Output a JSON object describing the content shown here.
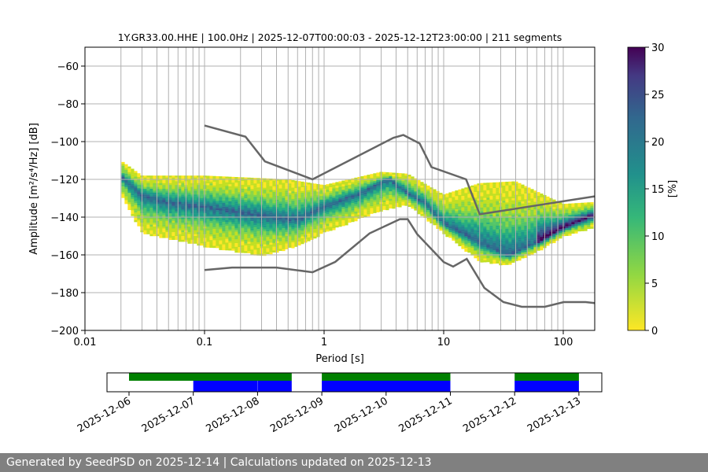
{
  "chart_data": {
    "type": "heatmap",
    "title": "1Y.GR33.00.HHE | 100.0Hz | 2025-12-07T00:00:03 - 2025-12-12T23:00:00 | 211 segments",
    "xlabel": "Period [s]",
    "ylabel": "Amplitude [m²/s⁴/Hz] [dB]",
    "xscale": "log",
    "xlim": [
      0.01,
      183
    ],
    "ylim": [
      -200,
      -50
    ],
    "xticks": [
      {
        "v": 0.01,
        "label": "0.01"
      },
      {
        "v": 0.1,
        "label": "0.1"
      },
      {
        "v": 1,
        "label": "1"
      },
      {
        "v": 10,
        "label": "10"
      },
      {
        "v": 100,
        "label": "100"
      }
    ],
    "yticks": [
      {
        "v": -60,
        "label": "−60"
      },
      {
        "v": -80,
        "label": "−80"
      },
      {
        "v": -100,
        "label": "−100"
      },
      {
        "v": -120,
        "label": "−120"
      },
      {
        "v": -140,
        "label": "−140"
      },
      {
        "v": -160,
        "label": "−160"
      },
      {
        "v": -180,
        "label": "−180"
      },
      {
        "v": -200,
        "label": "−200"
      }
    ],
    "grid": true,
    "colorbar": {
      "label": "[%]",
      "range": [
        0,
        30
      ],
      "ticks": [
        "0",
        "5",
        "10",
        "15",
        "20",
        "25",
        "30"
      ],
      "colormap": "viridis_r"
    },
    "pdf_mode": [
      [
        0.02,
        -118
      ],
      [
        0.03,
        -128
      ],
      [
        0.05,
        -132
      ],
      [
        0.1,
        -134
      ],
      [
        0.2,
        -137
      ],
      [
        0.4,
        -140
      ],
      [
        0.6,
        -141
      ],
      [
        1,
        -134
      ],
      [
        2,
        -127
      ],
      [
        3.5,
        -119
      ],
      [
        5,
        -127
      ],
      [
        7,
        -132
      ],
      [
        10,
        -143
      ],
      [
        20,
        -153
      ],
      [
        35,
        -160
      ],
      [
        60,
        -153
      ],
      [
        100,
        -145
      ],
      [
        183,
        -138
      ]
    ],
    "pdf_upper": [
      [
        0.02,
        -110
      ],
      [
        0.03,
        -118
      ],
      [
        0.1,
        -118
      ],
      [
        0.5,
        -120
      ],
      [
        1,
        -123
      ],
      [
        3,
        -116
      ],
      [
        5,
        -117
      ],
      [
        10,
        -128
      ],
      [
        20,
        -122
      ],
      [
        40,
        -121
      ],
      [
        100,
        -133
      ],
      [
        183,
        -132
      ]
    ],
    "pdf_lower": [
      [
        0.02,
        -127
      ],
      [
        0.03,
        -148
      ],
      [
        0.1,
        -155
      ],
      [
        0.3,
        -160
      ],
      [
        0.6,
        -155
      ],
      [
        1,
        -148
      ],
      [
        3,
        -136
      ],
      [
        5,
        -133
      ],
      [
        10,
        -148
      ],
      [
        20,
        -163
      ],
      [
        35,
        -165
      ],
      [
        60,
        -158
      ],
      [
        100,
        -150
      ],
      [
        183,
        -145
      ]
    ],
    "nhnm": [
      [
        0.1,
        -91.5
      ],
      [
        0.22,
        -97.4
      ],
      [
        0.32,
        -110.5
      ],
      [
        0.8,
        -120
      ],
      [
        3.8,
        -98
      ],
      [
        4.6,
        -96.5
      ],
      [
        6.3,
        -101
      ],
      [
        7.9,
        -113.5
      ],
      [
        15.4,
        -120
      ],
      [
        20,
        -138.5
      ],
      [
        183,
        -129
      ]
    ],
    "nlnm": [
      [
        0.1,
        -168
      ],
      [
        0.17,
        -166.7
      ],
      [
        0.4,
        -166.7
      ],
      [
        0.8,
        -169.2
      ],
      [
        1.24,
        -163.7
      ],
      [
        2.4,
        -148.6
      ],
      [
        4.3,
        -141.1
      ],
      [
        5,
        -141.1
      ],
      [
        6,
        -149
      ],
      [
        10,
        -163.8
      ],
      [
        12,
        -166.2
      ],
      [
        15.6,
        -162.1
      ],
      [
        21.9,
        -177.5
      ],
      [
        31.6,
        -185
      ],
      [
        45,
        -187.5
      ],
      [
        70,
        -187.5
      ],
      [
        101,
        -185
      ],
      [
        154,
        -185
      ],
      [
        183,
        -185.5
      ]
    ],
    "timeline": {
      "ticks": [
        "2025-12-06",
        "2025-12-07",
        "2025-12-08",
        "2025-12-09",
        "2025-12-10",
        "2025-12-11",
        "2025-12-12",
        "2025-12-13"
      ],
      "green_color": "#008000",
      "blue_color": "#0000ff",
      "green_spans": [
        [
          "2025-12-06T00:00",
          "2025-12-08T12:45"
        ],
        [
          "2025-12-09T00:00",
          "2025-12-11T00:00"
        ],
        [
          "2025-12-12T00:00",
          "2025-12-13T00:00"
        ]
      ],
      "blue_spans": [
        [
          "2025-12-07T00:00",
          "2025-12-08T00:00"
        ],
        [
          "2025-12-08T00:05",
          "2025-12-08T12:45"
        ],
        [
          "2025-12-09T00:00",
          "2025-12-11T00:00"
        ],
        [
          "2025-12-12T00:00",
          "2025-12-13T00:00"
        ]
      ]
    }
  },
  "footer": {
    "text": "Generated by SeedPSD on 2025-12-14 | Calculations updated on 2025-12-13"
  }
}
